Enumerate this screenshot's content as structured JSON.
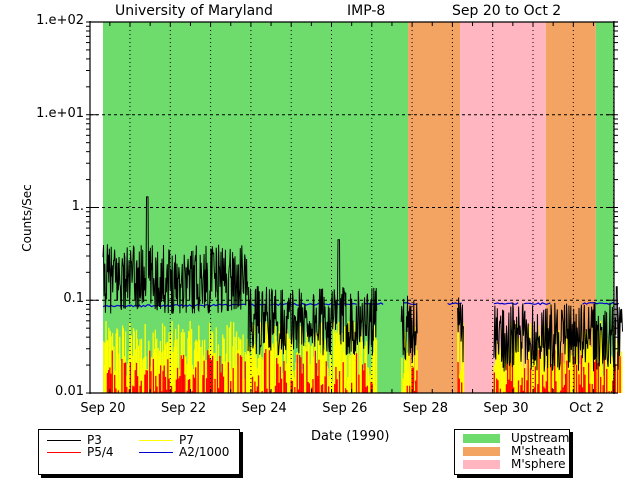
{
  "chart_data": {
    "type": "line",
    "title_left": "University of Maryland",
    "title_mid": "IMP-8",
    "title_right": "Sep 20 to Oct 2",
    "xlabel": "Date (1990)",
    "ylabel": "Counts/Sec",
    "yscale": "log",
    "ylim": [
      0.01,
      100
    ],
    "xlim_days": [
      0,
      12.9
    ],
    "y_ticks": [
      {
        "value": 100,
        "label": "1.e+02"
      },
      {
        "value": 10,
        "label": "1.e+01"
      },
      {
        "value": 1,
        "label": "1."
      },
      {
        "value": 0.1,
        "label": "0.1"
      },
      {
        "value": 0.01,
        "label": "0.01"
      }
    ],
    "x_ticks": [
      {
        "day": 0,
        "label": "Sep 20"
      },
      {
        "day": 2,
        "label": "Sep 22"
      },
      {
        "day": 4,
        "label": "Sep 24"
      },
      {
        "day": 6,
        "label": "Sep 26"
      },
      {
        "day": 8,
        "label": "Sep 28"
      },
      {
        "day": 10,
        "label": "Sep 30"
      },
      {
        "day": 12,
        "label": "Oct 2"
      }
    ],
    "regions": [
      {
        "name": "Upstream",
        "start": 0,
        "end": 7.57,
        "color": "#6ddc6d"
      },
      {
        "name": "M'sheath",
        "start": 7.57,
        "end": 8.86,
        "color": "#f3a463"
      },
      {
        "name": "M'sphere",
        "start": 8.86,
        "end": 10.99,
        "color": "#ffb6c1"
      },
      {
        "name": "M'sheath",
        "start": 10.99,
        "end": 12.23,
        "color": "#f3a463"
      },
      {
        "name": "Upstream",
        "start": 12.23,
        "end": 12.9,
        "color": "#6ddc6d"
      }
    ],
    "series": [
      {
        "name": "P3",
        "color": "#000000",
        "typical_range": [
          0.03,
          1.3
        ],
        "segments": [
          {
            "start": 0,
            "end": 3.6,
            "mean": 0.17,
            "peak_day": 1.1,
            "peak": 1.3
          },
          {
            "start": 3.6,
            "end": 6.8,
            "mean": 0.06,
            "peak_day": 5.85,
            "peak": 0.45
          },
          {
            "start": 7.4,
            "end": 7.8,
            "mean": 0.05
          },
          {
            "start": 8.8,
            "end": 8.95,
            "mean": 0.05
          },
          {
            "start": 9.7,
            "end": 12.9,
            "mean": 0.04,
            "peak_day": 12.75,
            "peak": 0.14
          }
        ]
      },
      {
        "name": "P5/4",
        "color": "#ff0000",
        "typical_range": [
          0.01,
          0.03
        ]
      },
      {
        "name": "P7",
        "color": "#ffff00",
        "typical_range": [
          0.01,
          0.06
        ]
      },
      {
        "name": "A2/1000",
        "color": "#0000cc",
        "typical_range": [
          0.085,
          0.095
        ]
      }
    ]
  },
  "legend_series": [
    {
      "name": "P3",
      "color": "#000000"
    },
    {
      "name": "P7",
      "color": "#ffff00"
    },
    {
      "name": "P5/4",
      "color": "#ff0000"
    },
    {
      "name": "A2/1000",
      "color": "#0000cc"
    }
  ],
  "legend_regions": [
    {
      "name": "Upstream",
      "color": "#6ddc6d"
    },
    {
      "name": "M'sheath",
      "color": "#f3a463"
    },
    {
      "name": "M'sphere",
      "color": "#ffb6c1"
    }
  ]
}
